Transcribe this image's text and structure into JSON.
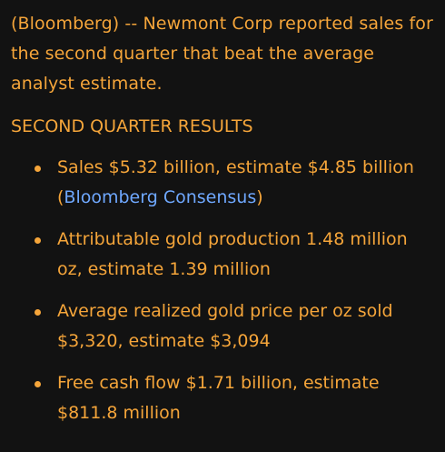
{
  "article": {
    "intro": "(Bloomberg) -- Newmont Corp reported sales for the second quarter that beat the average analyst estimate.",
    "section_title": "SECOND QUARTER RESULTS",
    "items": [
      {
        "before": "Sales $5.32 billion, estimate $4.85 billion (",
        "link": "Bloomberg Consensus",
        "after": ")"
      },
      {
        "text": "Attributable gold production 1.48 million oz, estimate 1.39 million"
      },
      {
        "text": "Average realized gold price per oz sold $3,320, estimate $3,094"
      },
      {
        "text": "Free cash flow $1.71 billion, estimate $811.8 million"
      }
    ]
  },
  "colors": {
    "background": "#121212",
    "text": "#f5a53a",
    "link": "#6fa8ff"
  }
}
